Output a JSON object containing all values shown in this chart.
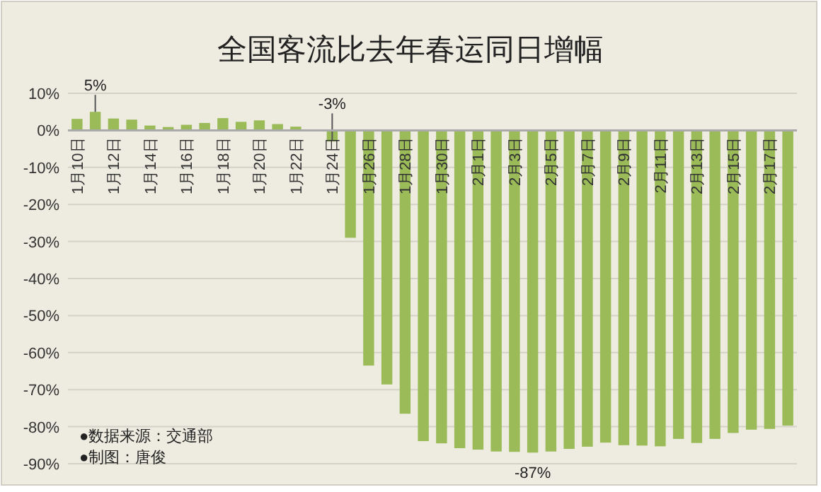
{
  "chart_data": {
    "type": "bar",
    "title": "全国客流比去年春运同日增幅",
    "categories": [
      "1月10日",
      null,
      "1月12日",
      null,
      "1月14日",
      null,
      "1月16日",
      null,
      "1月18日",
      null,
      "1月20日",
      null,
      "1月22日",
      null,
      "1月24日",
      null,
      "1月26日",
      null,
      "1月28日",
      null,
      "1月30日",
      null,
      "2月1日",
      null,
      "2月3日",
      null,
      "2月5日",
      null,
      "2月7日",
      null,
      "2月9日",
      null,
      "2月11日",
      null,
      "2月13日",
      null,
      "2月15日",
      null,
      "2月17日",
      null
    ],
    "series": [
      {
        "color": "#9bbb59",
        "values": [
          3.1,
          5,
          3.2,
          2.9,
          1.3,
          0.9,
          1.5,
          2.0,
          3.3,
          2.3,
          2.7,
          1.7,
          1.0,
          null,
          -3,
          -29,
          -63.5,
          -68.6,
          -76.5,
          -83.9,
          -84.5,
          -85.8,
          -86.2,
          -86.7,
          -86.8,
          -87,
          -86.7,
          -86.0,
          -85.4,
          -84.3,
          -85.0,
          -85.1,
          -85.3,
          -83.3,
          -84.4,
          -83.3,
          -81.7,
          -80.8,
          -80.6,
          -79.7
        ],
        "value_labels": [
          null,
          "5%",
          null,
          null,
          null,
          null,
          null,
          null,
          null,
          null,
          null,
          null,
          null,
          null,
          "-3%",
          null,
          null,
          null,
          null,
          null,
          null,
          null,
          null,
          null,
          null,
          "-87%",
          null,
          null,
          null,
          null,
          null,
          null,
          null,
          null,
          null,
          null,
          null,
          null,
          null,
          null
        ]
      }
    ],
    "ylim": [
      -90,
      10
    ],
    "yticks": [
      {
        "value": 10,
        "label": "10%"
      },
      {
        "value": 0,
        "label": "0%"
      },
      {
        "value": -10,
        "label": "-10%"
      },
      {
        "value": -20,
        "label": "-20%"
      },
      {
        "value": -30,
        "label": "-30%"
      },
      {
        "value": -40,
        "label": "-40%"
      },
      {
        "value": -50,
        "label": "-50%"
      },
      {
        "value": -60,
        "label": "-60%"
      },
      {
        "value": -70,
        "label": "-70%"
      },
      {
        "value": -80,
        "label": "-80%"
      },
      {
        "value": -90,
        "label": "-90%"
      }
    ],
    "grid": "y",
    "annotations": [
      "●数据来源：交通部",
      "●制图：唐俊"
    ]
  }
}
